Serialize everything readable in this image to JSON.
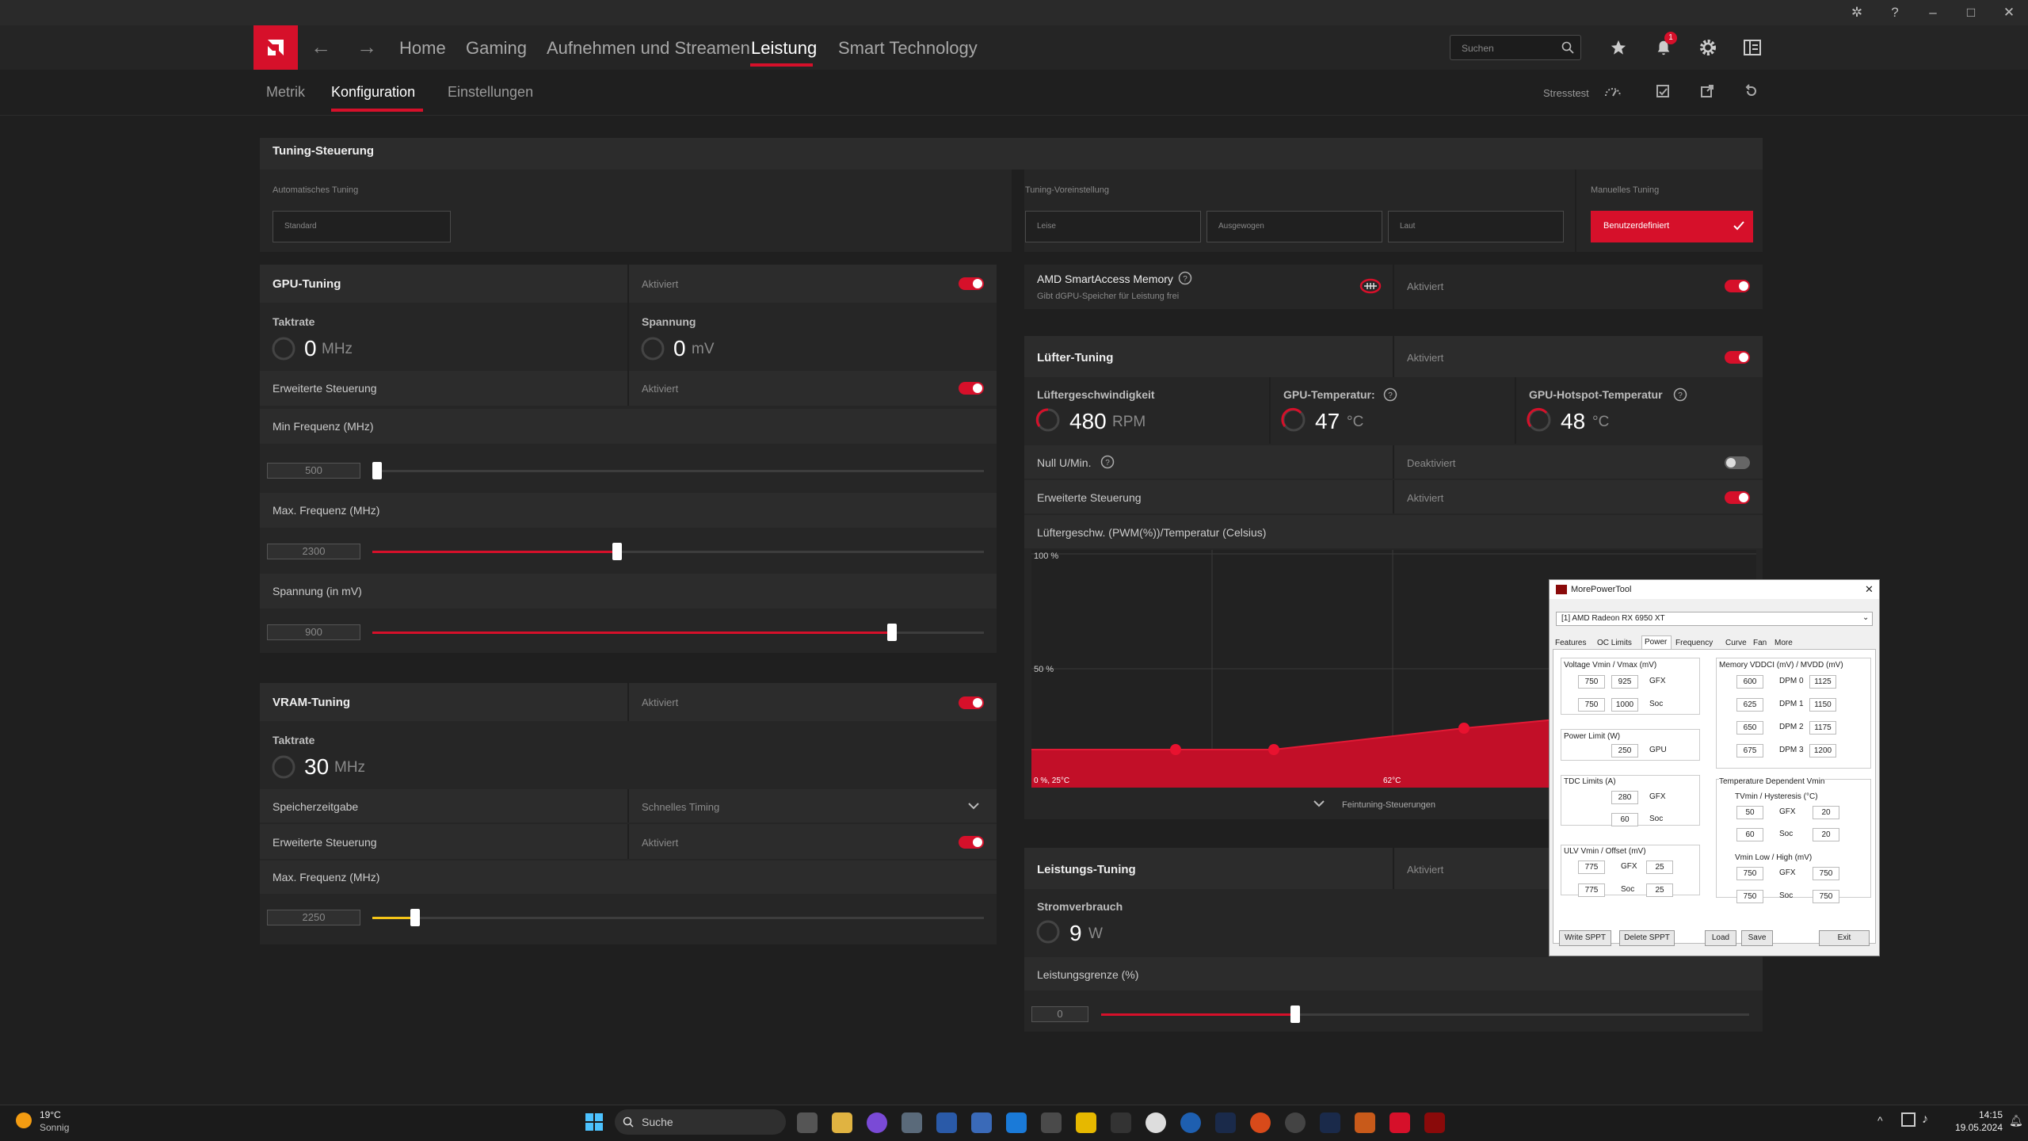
{
  "app": {
    "nav": {
      "home": "Home",
      "gaming": "Gaming",
      "record": "Aufnehmen und Streamen",
      "performance": "Leistung",
      "smart": "Smart Technology"
    },
    "search_placeholder": "Suchen",
    "notifications": "1",
    "subnav": {
      "metrics": "Metrik",
      "config": "Konfiguration",
      "settings": "Einstellungen"
    },
    "stresstest": "Stresstest",
    "accent": "#d6102a"
  },
  "tuning": {
    "title": "Tuning-Steuerung",
    "auto_label": "Automatisches Tuning",
    "auto_value": "Standard",
    "preset_label": "Tuning-Voreinstellung",
    "preset_quiet": "Leise",
    "preset_balanced": "Ausgewogen",
    "preset_loud": "Laut",
    "manual_label": "Manuelles Tuning",
    "manual_value": "Benutzerdefiniert"
  },
  "gpu": {
    "title": "GPU-Tuning",
    "status": "Aktiviert",
    "clock_label": "Taktrate",
    "clock_value": "0",
    "clock_unit": "MHz",
    "voltage_label": "Spannung",
    "voltage_value": "0",
    "voltage_unit": "mV",
    "advanced": "Erweiterte Steuerung",
    "advanced_status": "Aktiviert",
    "min_freq_label": "Min Frequenz (MHz)",
    "min_freq": "500",
    "min_freq_pos": 0,
    "max_freq_label": "Max. Frequenz (MHz)",
    "max_freq": "2300",
    "max_freq_pos": 0.4,
    "volt_label": "Spannung (in mV)",
    "volt": "900",
    "volt_pos": 0.85
  },
  "vram": {
    "title": "VRAM-Tuning",
    "status": "Aktiviert",
    "clock_label": "Taktrate",
    "clock_value": "30",
    "clock_unit": "MHz",
    "mem_timing_label": "Speicherzeitgabe",
    "mem_timing_value": "Schnelles Timing",
    "advanced": "Erweiterte Steuerung",
    "advanced_status": "Aktiviert",
    "max_freq_label": "Max. Frequenz (MHz)",
    "max_freq": "2250",
    "max_freq_pos": 0.07
  },
  "sam": {
    "title": "AMD SmartAccess Memory",
    "subtitle": "Gibt dGPU-Speicher für Leistung frei",
    "status": "Aktiviert"
  },
  "fan": {
    "title": "Lüfter-Tuning",
    "status": "Aktiviert",
    "speed_label": "Lüftergeschwindigkeit",
    "speed_value": "480",
    "speed_unit": "RPM",
    "temp_label": "GPU-Temperatur:",
    "temp_value": "47",
    "temp_unit": "°C",
    "hotspot_label": "GPU-Hotspot-Temperatur",
    "hotspot_value": "48",
    "hotspot_unit": "°C",
    "zero_rpm": "Null U/Min.",
    "zero_rpm_status": "Deaktiviert",
    "advanced": "Erweiterte Steuerung",
    "advanced_status": "Aktiviert",
    "curve_label": "Lüftergeschw. (PWM(%))/Temperatur (Celsius)",
    "y_top": "100 %",
    "y_mid": "50 %",
    "x_start": "0 %, 25°C",
    "x_mid": "62°C",
    "fine_tuning": "Feintuning-Steuerungen"
  },
  "power": {
    "title": "Leistungs-Tuning",
    "status": "Aktiviert",
    "consumption_label": "Stromverbrauch",
    "consumption_value": "9",
    "consumption_unit": "W",
    "limit_label": "Leistungsgrenze (%)",
    "limit_value": "0",
    "limit_pos": 0.3
  },
  "mpt": {
    "title": "MorePowerTool",
    "device": "[1] AMD Radeon RX 6950 XT",
    "tabs": [
      "Features",
      "OC Limits",
      "Power",
      "Frequency",
      "Curve",
      "Fan",
      "More"
    ],
    "voltage_title": "Voltage Vmin / Vmax (mV)",
    "v_gfx_min": "750",
    "v_gfx_max": "925",
    "v_soc_min": "750",
    "v_soc_max": "1000",
    "gfx": "GFX",
    "soc": "Soc",
    "gpu": "GPU",
    "power_limit_title": "Power Limit (W)",
    "power_limit": "250",
    "tdc_title": "TDC Limits (A)",
    "tdc_gfx": "280",
    "tdc_soc": "60",
    "ulv_title": "ULV Vmin / Offset (mV)",
    "ulv_gfx_v": "775",
    "ulv_gfx_o": "25",
    "ulv_soc_v": "775",
    "ulv_soc_o": "25",
    "mem_title": "Memory VDDCI (mV) / MVDD (mV)",
    "dpm": [
      {
        "label": "DPM 0",
        "vddci": "600",
        "mvdd": "1125"
      },
      {
        "label": "DPM 1",
        "vddci": "625",
        "mvdd": "1150"
      },
      {
        "label": "DPM 2",
        "vddci": "650",
        "mvdd": "1175"
      },
      {
        "label": "DPM 3",
        "vddci": "675",
        "mvdd": "1200"
      }
    ],
    "temp_vmin_title": "Temperature Dependent Vmin",
    "tvmin_title": "TVmin / Hysteresis (°C)",
    "tv_gfx": "50",
    "tv_gfx_h": "20",
    "tv_soc": "60",
    "tv_soc_h": "20",
    "vmin_title": "Vmin Low / High (mV)",
    "vm_gfx_l": "750",
    "vm_gfx_h": "750",
    "vm_soc_l": "750",
    "vm_soc_h": "750",
    "btn_write": "Write SPPT",
    "btn_delete": "Delete SPPT",
    "btn_load": "Load",
    "btn_save": "Save",
    "btn_exit": "Exit"
  },
  "taskbar": {
    "weather_temp": "19°C",
    "weather_desc": "Sonnig",
    "search": "Suche",
    "time": "14:15",
    "date": "19.05.2024"
  }
}
